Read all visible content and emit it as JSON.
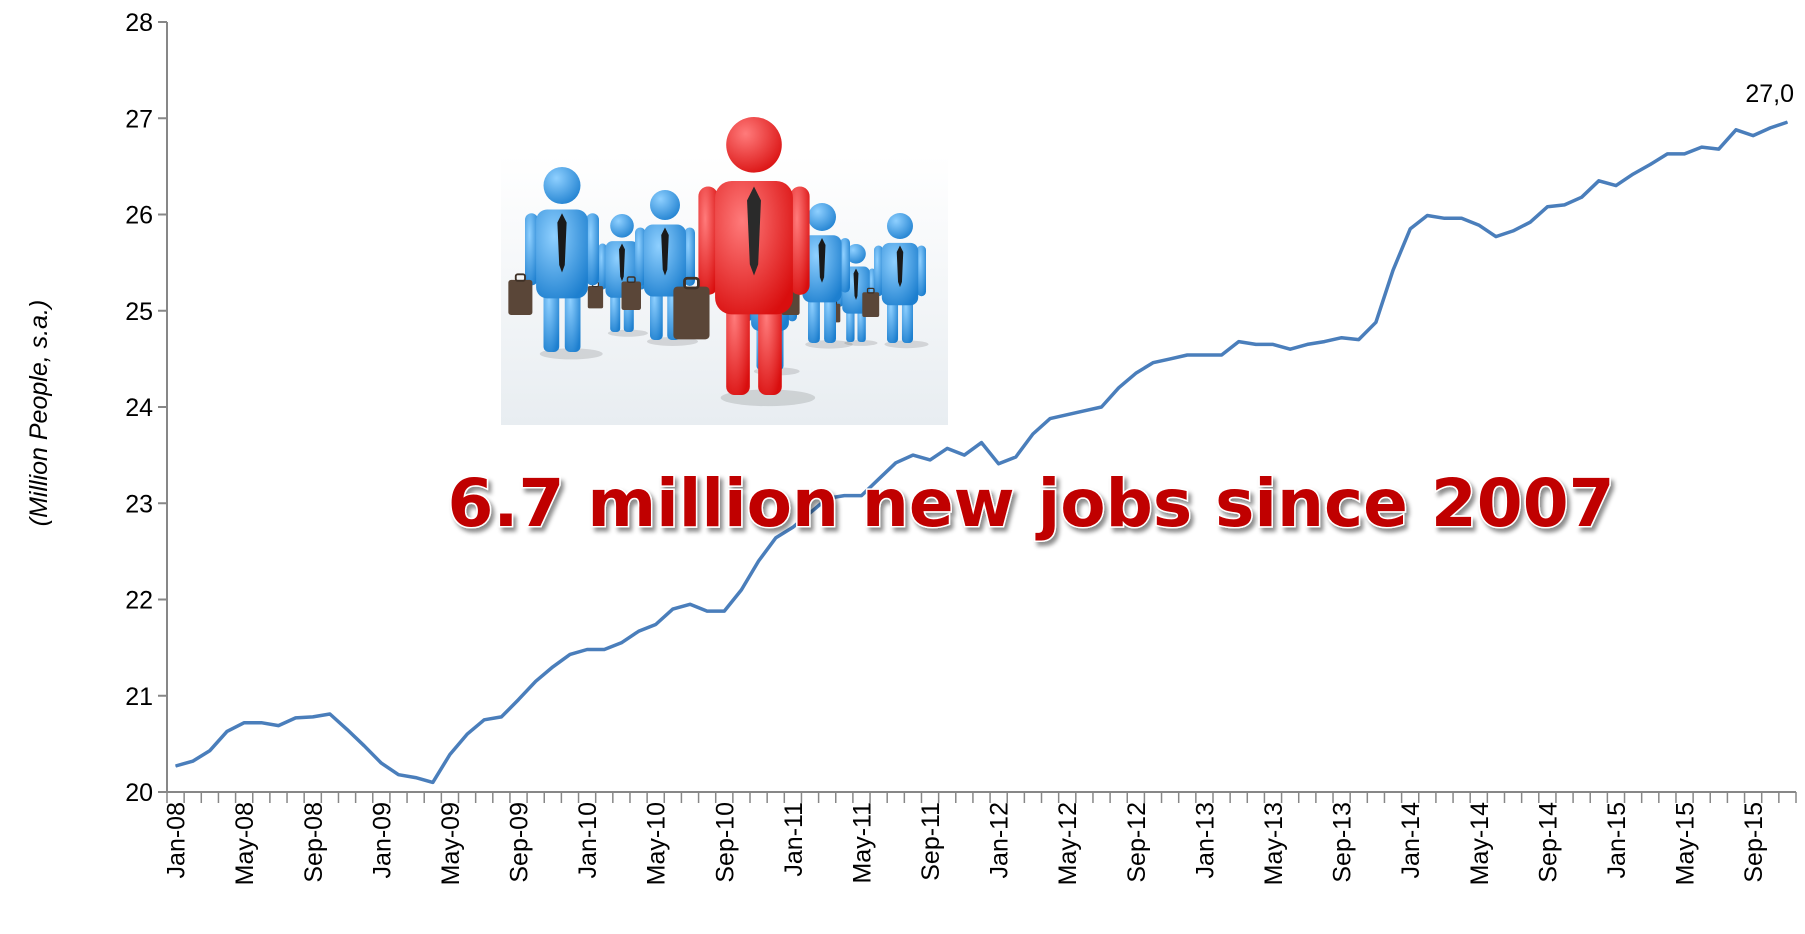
{
  "banner_text": "6.7 million new jobs since 2007",
  "end_label": "27,0",
  "illustration": {
    "icon": "business-people-group-icon",
    "colors": {
      "crowd": "#3a97dc",
      "leader": "#e81a1a"
    }
  },
  "colors": {
    "line": "#4a7ebb",
    "banner_fill": "#c00000",
    "banner_outline": "#ffffff"
  },
  "chart_data": {
    "type": "line",
    "title": "",
    "xlabel": "",
    "ylabel": "(Million  People,  s.a.)",
    "ylim": [
      20,
      28
    ],
    "yticks": [
      "20",
      "21",
      "22",
      "23",
      "24",
      "25",
      "26",
      "27",
      "28"
    ],
    "x_start": "Jan-08",
    "x_end": "Dec-15",
    "frequency": "monthly",
    "xtick_labels": [
      "Jan-08",
      "May-08",
      "Sep-08",
      "Jan-09",
      "May-09",
      "Sep-09",
      "Jan-10",
      "May-10",
      "Sep-10",
      "Jan-11",
      "May-11",
      "Sep-11",
      "Jan-12",
      "May-12",
      "Sep-12",
      "Jan-13",
      "May-13",
      "Sep-13",
      "Jan-14",
      "May-14",
      "Sep-14",
      "Jan-15",
      "May-15",
      "Sep-15"
    ],
    "grid": false,
    "legend": "none",
    "series": [
      {
        "values": [
          20.27,
          20.32,
          20.43,
          20.63,
          20.72,
          20.72,
          20.69,
          20.77,
          20.78,
          20.81,
          20.65,
          20.48,
          20.3,
          20.18,
          20.15,
          20.1,
          20.39,
          20.6,
          20.75,
          20.78,
          20.96,
          21.15,
          21.3,
          21.43,
          21.48,
          21.48,
          21.55,
          21.67,
          21.74,
          21.9,
          21.95,
          21.88,
          21.88,
          22.1,
          22.4,
          22.64,
          22.75,
          22.9,
          23.05,
          23.08,
          23.08,
          23.25,
          23.42,
          23.5,
          23.45,
          23.57,
          23.5,
          23.63,
          23.41,
          23.48,
          23.72,
          23.88,
          23.92,
          23.96,
          24.0,
          24.2,
          24.35,
          24.46,
          24.5,
          24.54,
          24.54,
          24.54,
          24.68,
          24.65,
          24.65,
          24.6,
          24.65,
          24.68,
          24.72,
          24.7,
          24.88,
          25.42,
          25.85,
          25.99,
          25.96,
          25.96,
          25.89,
          25.77,
          25.83,
          25.92,
          26.08,
          26.1,
          26.18,
          26.35,
          26.3,
          26.42,
          26.52,
          26.63,
          26.63,
          26.7,
          26.68,
          26.88,
          26.82,
          26.9,
          26.96
        ]
      }
    ]
  }
}
